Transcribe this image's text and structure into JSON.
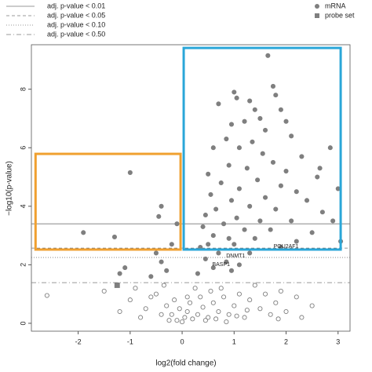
{
  "chart_data": {
    "type": "scatter",
    "x_label": "log2(fold change)",
    "y_label": "−log10(p-value)",
    "xlim": [
      -2.9,
      3.23
    ],
    "ylim": [
      -0.27,
      9.52
    ],
    "xticks": [
      -2,
      -1,
      0,
      1,
      2,
      3
    ],
    "yticks": [
      0,
      2,
      4,
      6,
      8
    ],
    "thresholds": [
      {
        "label": "adj. p-value < 0.01",
        "value": 3.4,
        "dash": "solid"
      },
      {
        "label": "adj. p-value < 0.05",
        "value": 2.57,
        "dash": "dashed"
      },
      {
        "label": "adj. p-value < 0.10",
        "value": 2.25,
        "dash": "dotted"
      },
      {
        "label": "adj. p-value < 0.50",
        "value": 1.39,
        "dash": "dashdot"
      }
    ],
    "highlight_boxes": [
      {
        "xlim": [
          -2.82,
          -0.03
        ],
        "ylim": [
          2.52,
          5.79
        ],
        "color": "#f0a030"
      },
      {
        "xlim": [
          0.03,
          3.05
        ],
        "ylim": [
          2.52,
          9.41
        ],
        "color": "#2aa6d8"
      }
    ],
    "annotations": [
      {
        "text": "DNMT1",
        "x": 1.03,
        "y": 2.3
      },
      {
        "text": "BASP1",
        "x": 0.75,
        "y": 2.0
      },
      {
        "text": "POU2AF1",
        "x": 2.0,
        "y": 2.62
      }
    ],
    "series": [
      {
        "name": "mRNA",
        "color": "#7f7f7f",
        "marker": "circle",
        "filled": true,
        "x": [
          1.65,
          1.75,
          1.8,
          1.0,
          1.05,
          1.9,
          0.7,
          1.4,
          1.5,
          1.2,
          0.95,
          1.6,
          2.1,
          0.85,
          1.35,
          1.1,
          0.6,
          1.55,
          2.3,
          1.75,
          0.9,
          1.25,
          2.0,
          0.5,
          1.45,
          2.6,
          0.75,
          1.9,
          1.1,
          2.2,
          0.55,
          1.6,
          0.95,
          2.4,
          1.3,
          0.65,
          1.8,
          2.7,
          0.45,
          1.05,
          1.5,
          2.1,
          0.8,
          0.4,
          1.2,
          1.7,
          2.5,
          0.6,
          0.9,
          1.4,
          2.2,
          0.5,
          1.0,
          1.9,
          0.35,
          0.7,
          1.3,
          0.45,
          0.85,
          1.1,
          0.6,
          0.95,
          0.3,
          2.65,
          3.0,
          2.9,
          3.05,
          2.85,
          2.0,
          1.3,
          -1.9,
          -1.3,
          -1.0,
          -0.4,
          -0.45,
          -0.2,
          -0.5,
          -0.4,
          -0.3,
          -1.1,
          -1.2,
          -0.6,
          -0.1
        ],
        "values": [
          9.15,
          8.1,
          7.8,
          7.9,
          7.7,
          7.3,
          7.5,
          7.3,
          7.0,
          6.9,
          6.8,
          6.6,
          6.4,
          6.3,
          6.2,
          6.0,
          6.0,
          5.8,
          5.7,
          5.5,
          5.4,
          5.3,
          5.2,
          5.1,
          4.9,
          5.0,
          4.8,
          4.7,
          4.6,
          4.5,
          4.4,
          4.3,
          4.2,
          4.2,
          4.0,
          3.9,
          3.9,
          3.8,
          3.7,
          3.6,
          3.5,
          3.5,
          3.4,
          3.3,
          3.2,
          3.2,
          3.1,
          3.0,
          2.9,
          2.9,
          2.8,
          2.7,
          2.7,
          2.6,
          2.6,
          2.4,
          2.4,
          2.2,
          2.1,
          2.0,
          1.9,
          1.8,
          1.7,
          5.3,
          4.6,
          3.5,
          2.8,
          6.0,
          6.9,
          7.6,
          3.1,
          2.95,
          5.15,
          4.0,
          3.65,
          2.7,
          2.4,
          2.1,
          1.8,
          1.9,
          1.7,
          1.6,
          3.4
        ]
      },
      {
        "name": "probe set",
        "color": "#7f7f7f",
        "marker": "square",
        "filled": true,
        "x": [
          -1.25
        ],
        "values": [
          1.3
        ]
      },
      {
        "color": "#7f7f7f",
        "marker": "circle",
        "filled": false,
        "x": [
          -2.6,
          -1.5,
          -0.9,
          -0.5,
          -0.3,
          -0.2,
          -0.1,
          0.0,
          0.05,
          0.1,
          -0.05,
          0.15,
          0.2,
          0.3,
          0.35,
          0.4,
          0.5,
          0.55,
          0.6,
          0.7,
          0.75,
          0.8,
          0.9,
          1.0,
          1.1,
          1.2,
          1.3,
          1.4,
          1.5,
          1.6,
          1.7,
          1.8,
          1.9,
          2.0,
          2.2,
          2.5,
          -0.7,
          -0.8,
          -1.0,
          -1.2,
          -0.6,
          -0.4,
          -0.15,
          0.25,
          0.45,
          0.65,
          0.85,
          1.05,
          -0.35,
          -0.25,
          0.1,
          1.25,
          2.3,
          1.85
        ],
        "values": [
          0.95,
          1.1,
          1.2,
          1.0,
          0.6,
          0.3,
          0.1,
          0.05,
          0.2,
          0.4,
          0.5,
          0.7,
          0.15,
          0.3,
          0.9,
          0.55,
          0.2,
          1.1,
          0.7,
          0.4,
          1.2,
          0.9,
          0.3,
          0.6,
          1.0,
          0.2,
          0.8,
          1.3,
          0.5,
          1.0,
          0.3,
          0.7,
          1.1,
          0.4,
          0.9,
          0.6,
          0.5,
          0.2,
          0.8,
          0.4,
          0.9,
          0.3,
          0.8,
          1.2,
          0.1,
          0.15,
          0.05,
          0.25,
          1.3,
          0.1,
          0.9,
          0.45,
          0.2,
          0.15
        ]
      }
    ]
  }
}
